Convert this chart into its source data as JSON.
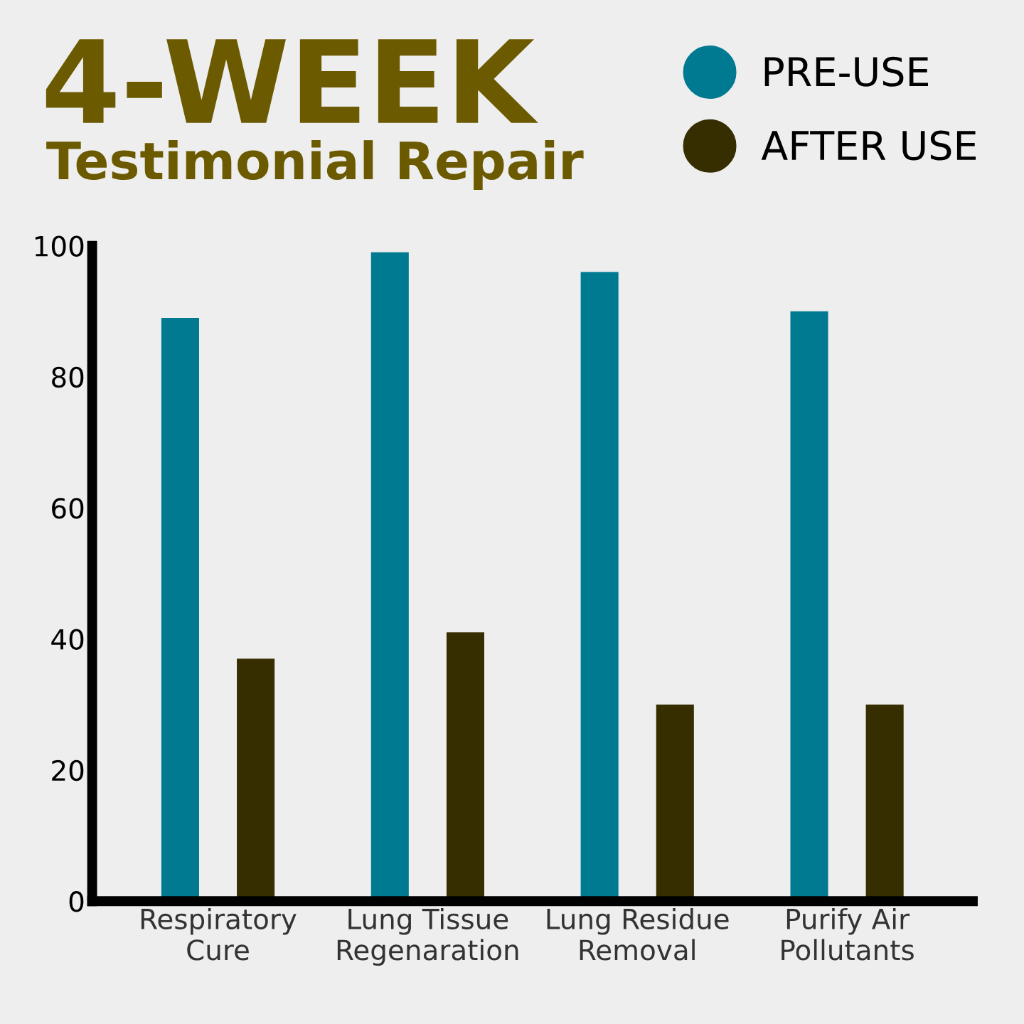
{
  "chart_data": {
    "type": "bar",
    "title": "4-WEEK",
    "subtitle": "Testimonial Repair",
    "categories": [
      "Respiratory\nCure",
      "Lung Tissue\nRegenaration",
      "Lung Residue\nRemoval",
      "Purify Air\nPollutants"
    ],
    "series": [
      {
        "name": "PRE-USE",
        "color": "#007a91",
        "values": [
          89,
          99,
          96,
          90
        ]
      },
      {
        "name": "AFTER USE",
        "color": "#362e00",
        "values": [
          37,
          41,
          30,
          30
        ]
      }
    ],
    "ylim": [
      0,
      100
    ],
    "yticks": [
      0,
      20,
      40,
      60,
      80,
      100
    ],
    "grid": false,
    "legend": "top right"
  }
}
